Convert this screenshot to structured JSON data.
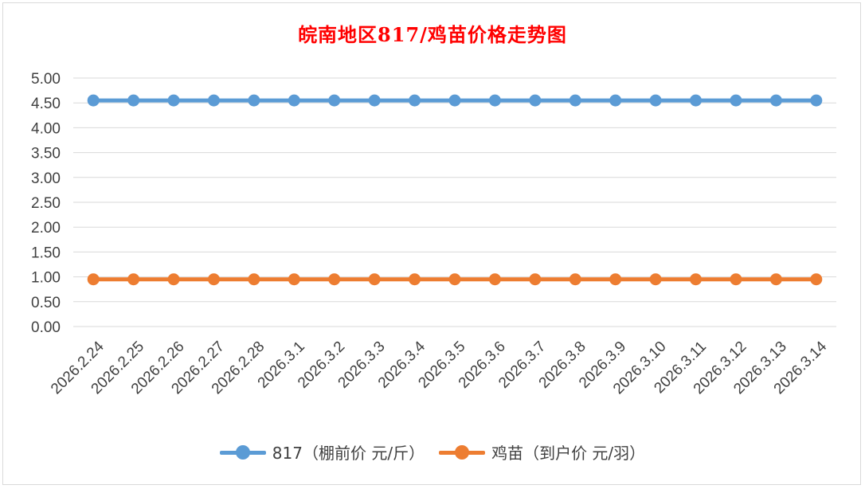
{
  "chart_data": {
    "type": "line",
    "title": "皖南地区817/鸡苗价格走势图",
    "categories": [
      "2026.2.24",
      "2026.2.25",
      "2026.2.26",
      "2026.2.27",
      "2026.2.28",
      "2026.3.1",
      "2026.3.2",
      "2026.3.3",
      "2026.3.4",
      "2026.3.5",
      "2026.3.6",
      "2026.3.7",
      "2026.3.8",
      "2026.3.9",
      "2026.3.10",
      "2026.3.11",
      "2026.3.12",
      "2026.3.13",
      "2026.3.14"
    ],
    "yticks": [
      "0.00",
      "0.50",
      "1.00",
      "1.50",
      "2.00",
      "2.50",
      "3.00",
      "3.50",
      "4.00",
      "4.50",
      "5.00"
    ],
    "ylim": [
      0,
      5
    ],
    "grid": true,
    "legend_position": "bottom",
    "series": [
      {
        "name": "817（棚前价 元/斤）",
        "color": "#5b9bd5",
        "values": [
          4.55,
          4.55,
          4.55,
          4.55,
          4.55,
          4.55,
          4.55,
          4.55,
          4.55,
          4.55,
          4.55,
          4.55,
          4.55,
          4.55,
          4.55,
          4.55,
          4.55,
          4.55,
          4.55
        ]
      },
      {
        "name": "鸡苗（到户价 元/羽）",
        "color": "#ed7d31",
        "values": [
          0.95,
          0.95,
          0.95,
          0.95,
          0.95,
          0.95,
          0.95,
          0.95,
          0.95,
          0.95,
          0.95,
          0.95,
          0.95,
          0.95,
          0.95,
          0.95,
          0.95,
          0.95,
          0.95
        ]
      }
    ]
  }
}
